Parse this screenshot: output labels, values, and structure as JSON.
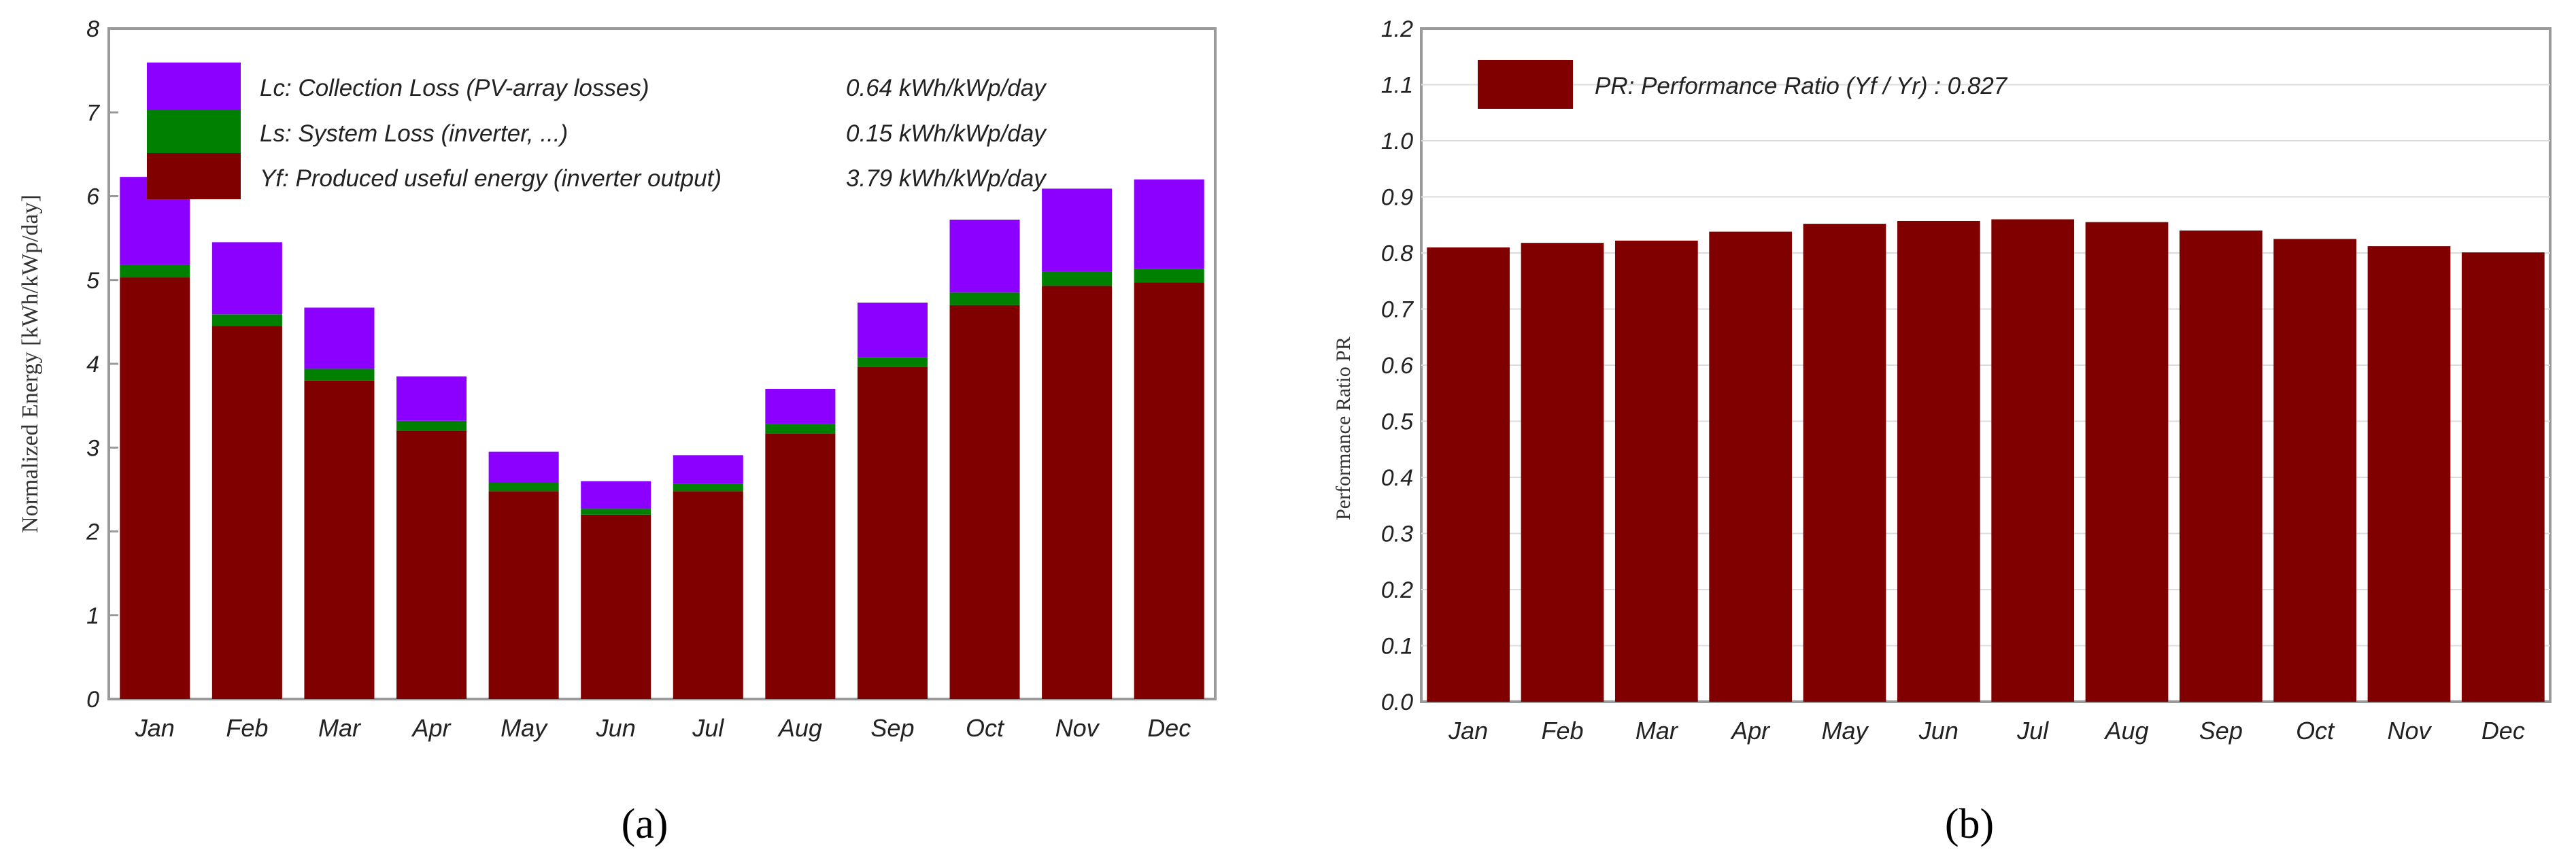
{
  "panels": {
    "a": {
      "caption": "(a)"
    },
    "b": {
      "caption": "(b)"
    }
  },
  "colors": {
    "yf": "#800000",
    "ls": "#008000",
    "lc": "#8b00ff",
    "frame": "#9a9a9a"
  },
  "chart_data": [
    {
      "type": "bar",
      "stacked": true,
      "title": "",
      "xlabel": "",
      "ylabel": "Normalized Energy [kWh/kWp/day]",
      "ylim": [
        0,
        8
      ],
      "yticks": [
        "0",
        "1",
        "2",
        "3",
        "4",
        "5",
        "6",
        "7",
        "8"
      ],
      "categories": [
        "Jan",
        "Feb",
        "Mar",
        "Apr",
        "May",
        "Jun",
        "Jul",
        "Aug",
        "Sep",
        "Oct",
        "Nov",
        "Dec"
      ],
      "series": [
        {
          "name": "Yf: Produced useful energy  (inverter output)",
          "value_label": "3.79 kWh/kWp/day",
          "values": [
            5.03,
            4.45,
            3.8,
            3.2,
            2.48,
            2.2,
            2.48,
            3.17,
            3.96,
            4.7,
            4.93,
            4.97
          ]
        },
        {
          "name": "Ls: System Loss  (inverter, ...)",
          "value_label": "0.15 kWh/kWp/day",
          "values": [
            0.15,
            0.14,
            0.14,
            0.12,
            0.1,
            0.07,
            0.09,
            0.11,
            0.12,
            0.15,
            0.17,
            0.16
          ]
        },
        {
          "name": "Lc: Collection Loss (PV-array losses)",
          "value_label": "0.64 kWh/kWp/day",
          "values": [
            1.05,
            0.86,
            0.73,
            0.53,
            0.37,
            0.33,
            0.34,
            0.42,
            0.65,
            0.87,
            0.99,
            1.07
          ]
        }
      ],
      "legend_position": "top-left"
    },
    {
      "type": "bar",
      "title": "",
      "xlabel": "",
      "ylabel": "Performance Ratio PR",
      "ylim": [
        0,
        1.2
      ],
      "yticks": [
        "0.0",
        "0.1",
        "0.2",
        "0.3",
        "0.4",
        "0.5",
        "0.6",
        "0.7",
        "0.8",
        "0.9",
        "1.0",
        "1.1",
        "1.2"
      ],
      "categories": [
        "Jan",
        "Feb",
        "Mar",
        "Apr",
        "May",
        "Jun",
        "Jul",
        "Aug",
        "Sep",
        "Oct",
        "Nov",
        "Dec"
      ],
      "series": [
        {
          "name": "PR: Performance Ratio (Yf / Yr) :  0.827",
          "values": [
            0.81,
            0.818,
            0.822,
            0.838,
            0.852,
            0.857,
            0.86,
            0.855,
            0.84,
            0.825,
            0.812,
            0.801
          ]
        }
      ],
      "legend_position": "top-left"
    }
  ]
}
